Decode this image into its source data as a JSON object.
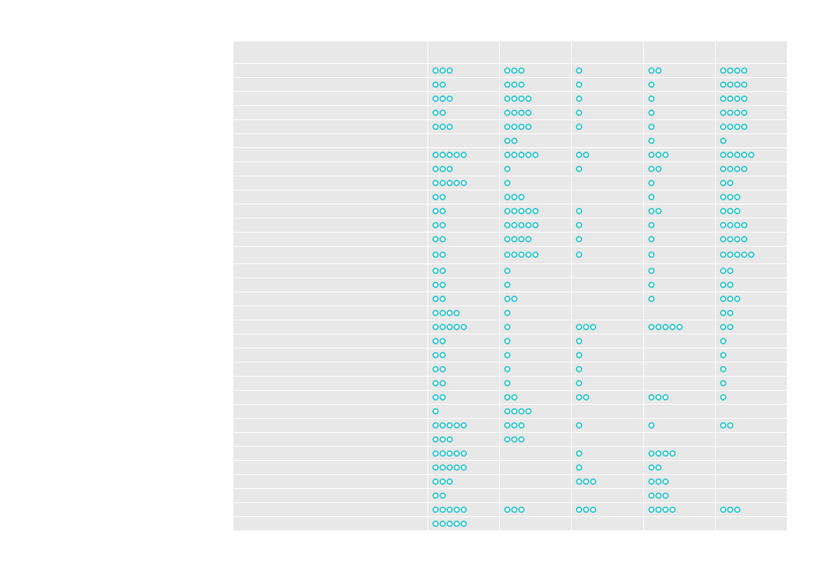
{
  "table": {
    "columns": [
      "",
      "",
      "",
      "",
      "",
      ""
    ],
    "icon": "ring-dot-icon",
    "dot_color": "#2ec7cf",
    "rows": [
      [
        3,
        3,
        1,
        2,
        4
      ],
      [
        2,
        3,
        1,
        1,
        4
      ],
      [
        3,
        4,
        1,
        1,
        4
      ],
      [
        2,
        4,
        1,
        1,
        4
      ],
      [
        3,
        4,
        1,
        1,
        4
      ],
      [
        0,
        2,
        0,
        1,
        1
      ],
      [
        5,
        5,
        2,
        3,
        5
      ],
      [
        3,
        1,
        1,
        2,
        4
      ],
      [
        5,
        1,
        0,
        1,
        2
      ],
      [
        2,
        3,
        0,
        1,
        3
      ],
      [
        2,
        5,
        1,
        2,
        3
      ],
      [
        2,
        5,
        1,
        1,
        4
      ],
      [
        2,
        4,
        1,
        1,
        4
      ],
      [
        2,
        5,
        1,
        1,
        5
      ],
      [
        2,
        1,
        0,
        1,
        2
      ],
      [
        2,
        1,
        0,
        1,
        2
      ],
      [
        2,
        2,
        0,
        1,
        3
      ],
      [
        4,
        1,
        0,
        0,
        2
      ],
      [
        5,
        1,
        3,
        5,
        2
      ],
      [
        2,
        1,
        1,
        0,
        1
      ],
      [
        2,
        1,
        1,
        0,
        1
      ],
      [
        2,
        1,
        1,
        0,
        1
      ],
      [
        2,
        1,
        1,
        0,
        1
      ],
      [
        2,
        2,
        2,
        3,
        1
      ],
      [
        1,
        4,
        0,
        0,
        0
      ],
      [
        5,
        3,
        1,
        1,
        2
      ],
      [
        3,
        3,
        0,
        0,
        0
      ],
      [
        5,
        0,
        1,
        4,
        0
      ],
      [
        5,
        0,
        1,
        2,
        0
      ],
      [
        3,
        0,
        3,
        3,
        0
      ],
      [
        2,
        0,
        0,
        3,
        0
      ],
      [
        5,
        3,
        3,
        4,
        3
      ],
      [
        5,
        0,
        0,
        0,
        0
      ]
    ]
  }
}
